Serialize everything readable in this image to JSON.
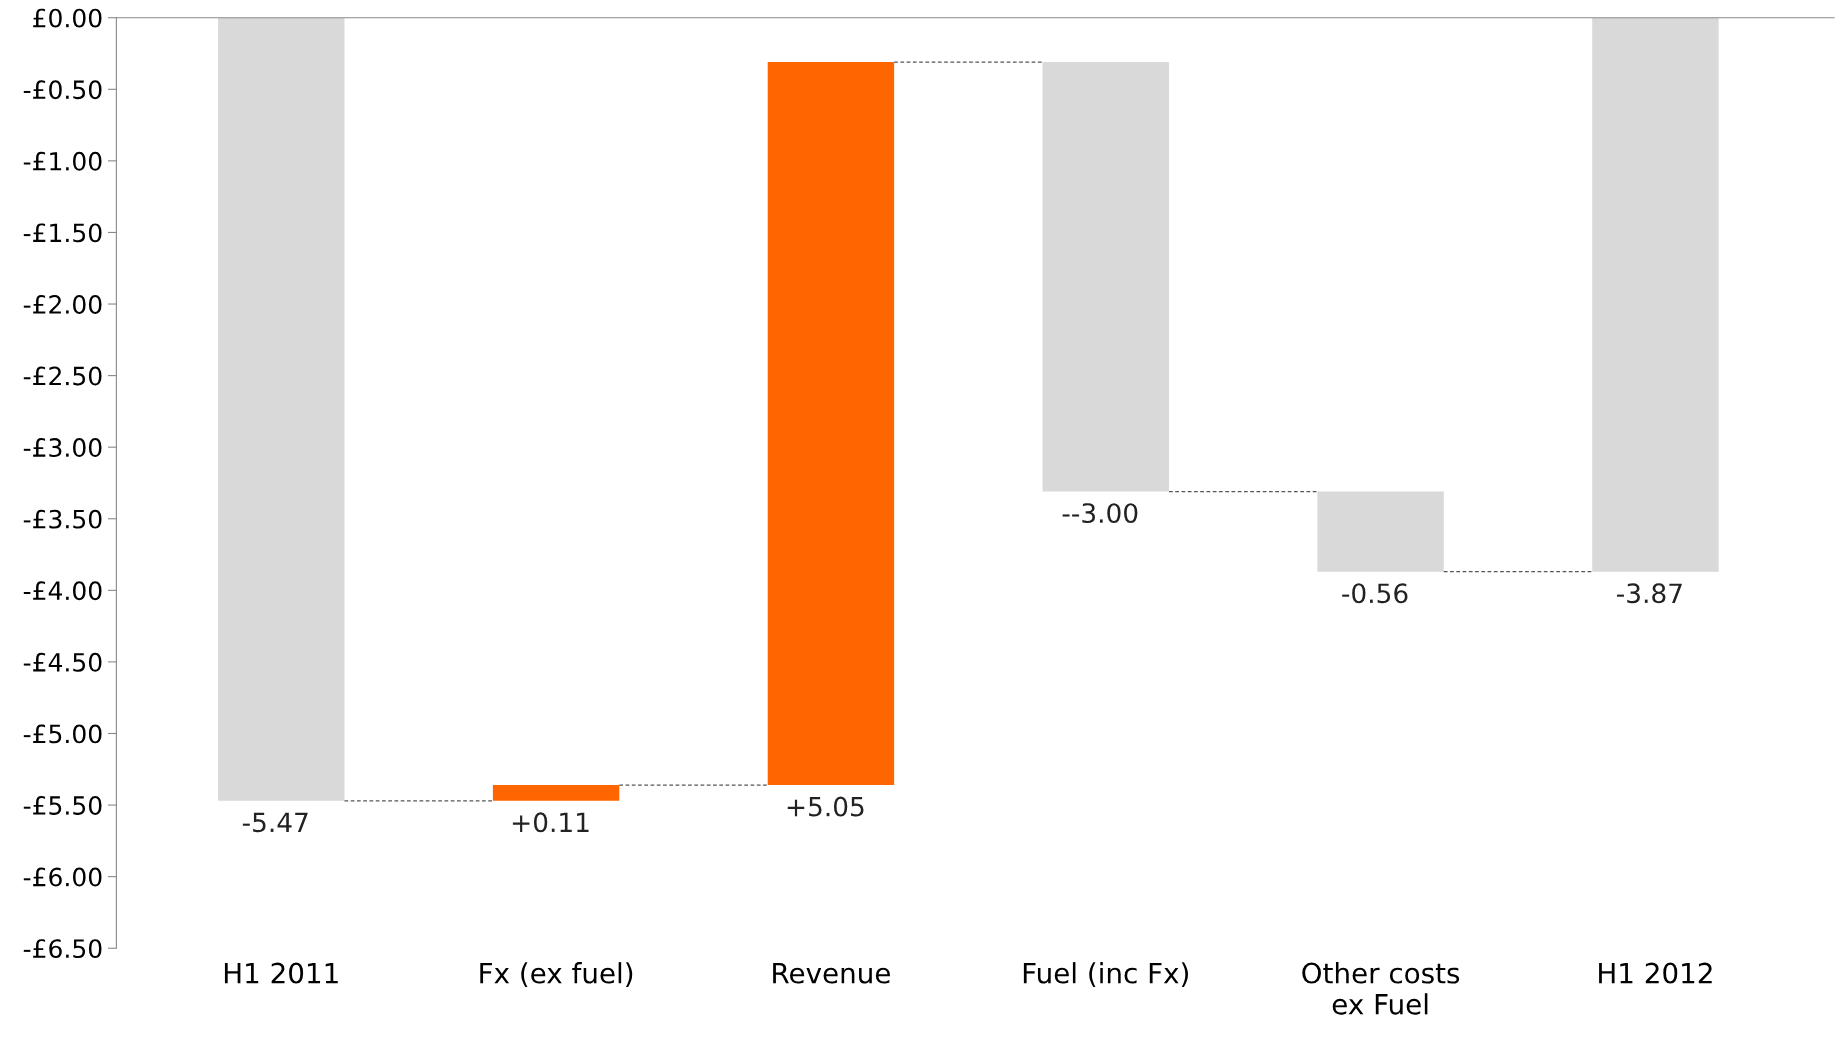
{
  "chart_data": {
    "type": "bar",
    "categories": [
      "H1 2011",
      "Fx (ex fuel)",
      "Revenue",
      "Fuel (inc Fx)",
      "Other costs\nex Fuel",
      "H1 2012"
    ],
    "base": [
      0,
      -5.47,
      -5.36,
      -0.31,
      -3.31,
      0
    ],
    "values": [
      -5.47,
      0.11,
      5.05,
      -3.0,
      -0.56,
      -3.87
    ],
    "colors": [
      "#d9d9d9",
      "#ff6600",
      "#ff6600",
      "#d9d9d9",
      "#d9d9d9",
      "#d9d9d9"
    ],
    "value_labels": [
      "-5.47",
      "+0.11",
      "+5.05",
      "--3.00",
      "-0.56",
      "-3.87"
    ],
    "ylim": [
      -6.5,
      0
    ],
    "yticks": [
      {
        "value": 0,
        "label": "£0.00"
      },
      {
        "value": -0.5,
        "label": "-£0.50"
      },
      {
        "value": -1,
        "label": "-£1.00"
      },
      {
        "value": -1.5,
        "label": "-£1.50"
      },
      {
        "value": -2,
        "label": "-£2.00"
      },
      {
        "value": -2.5,
        "label": "-£2.50"
      },
      {
        "value": -3,
        "label": "-£3.00"
      },
      {
        "value": -3.5,
        "label": "-£3.50"
      },
      {
        "value": -4,
        "label": "-£4.00"
      },
      {
        "value": -4.5,
        "label": "-£4.50"
      },
      {
        "value": -5,
        "label": "-£5.00"
      },
      {
        "value": -5.5,
        "label": "-£5.50"
      },
      {
        "value": -6,
        "label": "-£6.00"
      },
      {
        "value": -6.5,
        "label": "-£6.50"
      }
    ],
    "grid": false,
    "legend": false
  }
}
